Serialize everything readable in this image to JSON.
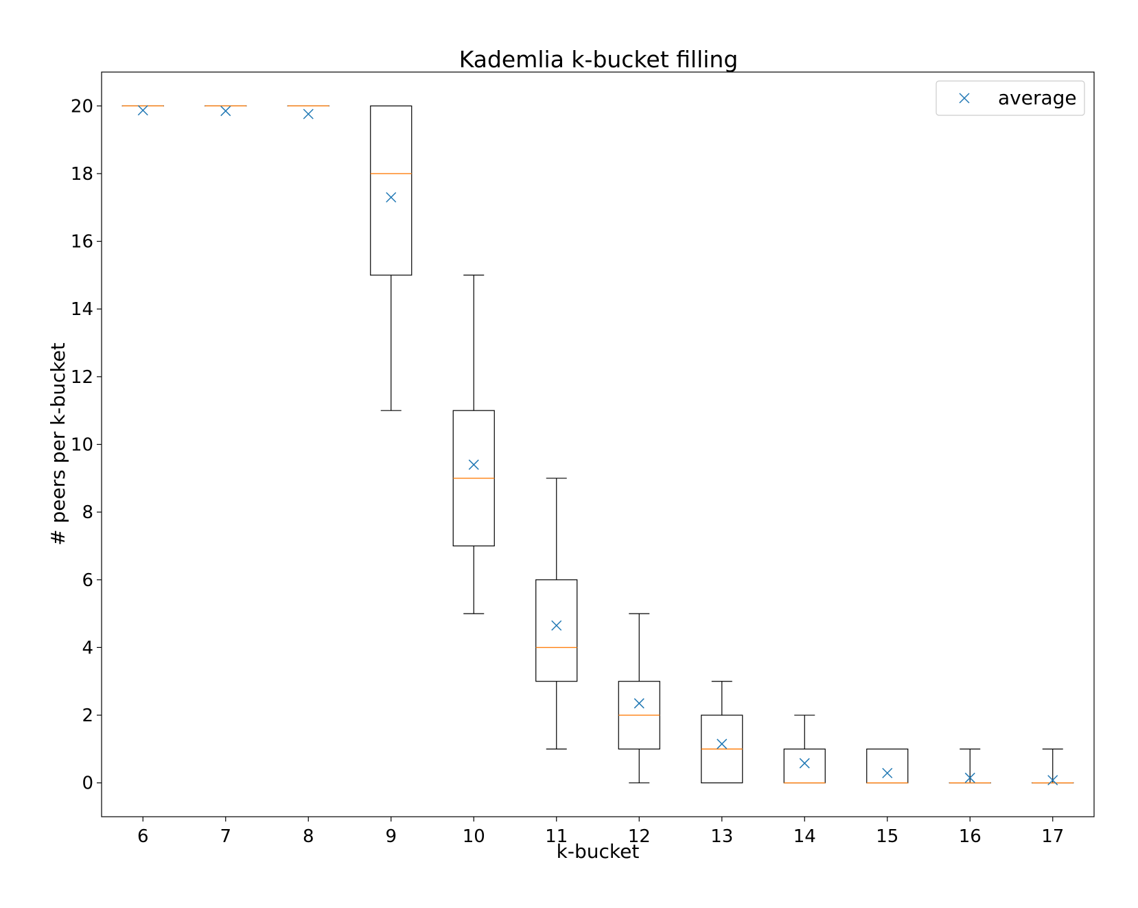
{
  "chart_data": {
    "type": "box",
    "title": "Kademlia k-bucket filling",
    "xlabel": "k-bucket",
    "ylabel": "# peers per k-bucket",
    "ylim": [
      -1,
      21
    ],
    "y_ticks": [
      0,
      2,
      4,
      6,
      8,
      10,
      12,
      14,
      16,
      18,
      20
    ],
    "grid": false,
    "legend": {
      "position": "top-right",
      "entries": [
        {
          "label": "average",
          "marker": "x"
        }
      ]
    },
    "colors": {
      "box": "#000000",
      "median": "#ff7f0e",
      "mean_marker": "#1f77b4"
    },
    "categories": [
      "6",
      "7",
      "8",
      "9",
      "10",
      "11",
      "12",
      "13",
      "14",
      "15",
      "16",
      "17"
    ],
    "boxes": [
      {
        "x": "6",
        "whisker_low": 20,
        "q1": 20,
        "median": 20,
        "q3": 20,
        "whisker_high": 20,
        "mean": 19.87
      },
      {
        "x": "7",
        "whisker_low": 20,
        "q1": 20,
        "median": 20,
        "q3": 20,
        "whisker_high": 20,
        "mean": 19.85
      },
      {
        "x": "8",
        "whisker_low": 20,
        "q1": 20,
        "median": 20,
        "q3": 20,
        "whisker_high": 20,
        "mean": 19.76
      },
      {
        "x": "9",
        "whisker_low": 11,
        "q1": 15,
        "median": 18,
        "q3": 20,
        "whisker_high": 20,
        "mean": 17.3
      },
      {
        "x": "10",
        "whisker_low": 5,
        "q1": 7,
        "median": 9,
        "q3": 11,
        "whisker_high": 15,
        "mean": 9.4
      },
      {
        "x": "11",
        "whisker_low": 1,
        "q1": 3,
        "median": 4,
        "q3": 6,
        "whisker_high": 9,
        "mean": 4.65
      },
      {
        "x": "12",
        "whisker_low": 0,
        "q1": 1,
        "median": 2,
        "q3": 3,
        "whisker_high": 5,
        "mean": 2.35
      },
      {
        "x": "13",
        "whisker_low": 0,
        "q1": 0,
        "median": 1,
        "q3": 2,
        "whisker_high": 3,
        "mean": 1.15
      },
      {
        "x": "14",
        "whisker_low": 0,
        "q1": 0,
        "median": 0,
        "q3": 1,
        "whisker_high": 2,
        "mean": 0.58
      },
      {
        "x": "15",
        "whisker_low": 0,
        "q1": 0,
        "median": 0,
        "q3": 1,
        "whisker_high": 1,
        "mean": 0.29
      },
      {
        "x": "16",
        "whisker_low": 0,
        "q1": 0,
        "median": 0,
        "q3": 0,
        "whisker_high": 1,
        "mean": 0.15
      },
      {
        "x": "17",
        "whisker_low": 0,
        "q1": 0,
        "median": 0,
        "q3": 0,
        "whisker_high": 1,
        "mean": 0.08
      }
    ]
  }
}
